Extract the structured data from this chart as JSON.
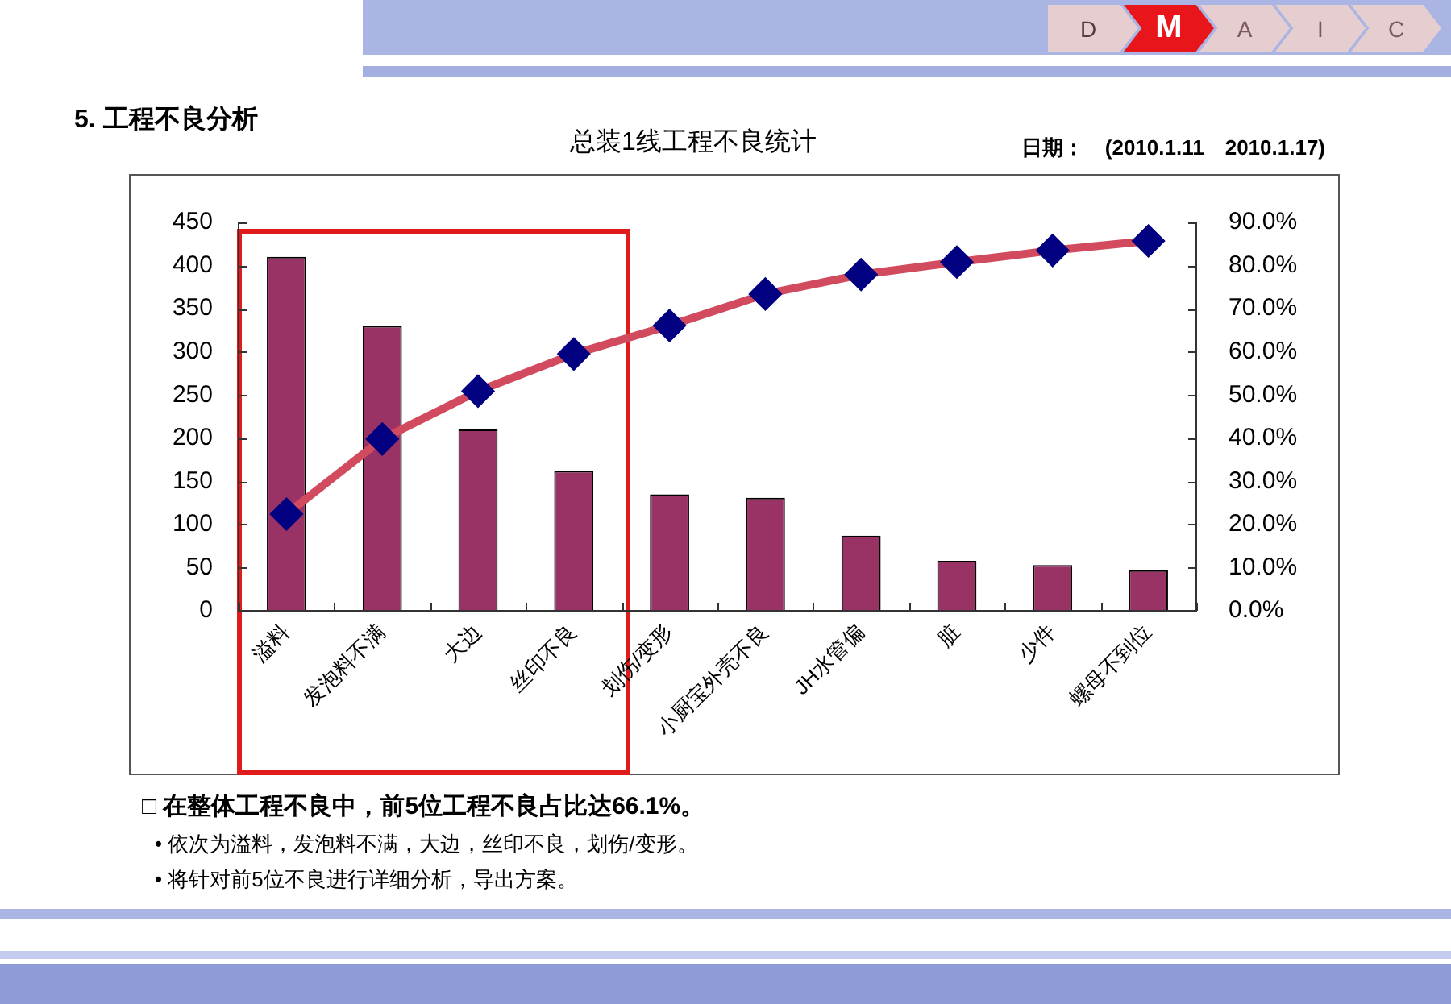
{
  "chart_data": {
    "type": "bar",
    "title": "总装1线工程不良统计",
    "subtitle": "日期：　(2010.1.11　2010.1.17)",
    "categories": [
      "溢料",
      "发泡料不满",
      "大边",
      "丝印不良",
      "划伤/变形",
      "小厨宝外壳不良",
      "JH水管偏",
      "脏",
      "少件",
      "螺母不到位"
    ],
    "series": [
      {
        "color": "#993366",
        "values": [
          410,
          330,
          210,
          162,
          135,
          131,
          87,
          58,
          53,
          47
        ]
      },
      {
        "type": "line",
        "axis": "y2",
        "color": "#d24a5e",
        "colors": [
          "#000080",
          "#000080",
          "#000080",
          "#000080",
          "#000080",
          "#000080",
          "#000080",
          "#000080",
          "#000080",
          "#000080"
        ],
        "marker": "diamond",
        "line_style": "solid",
        "values": [
          22.4,
          39.8,
          50.9,
          59.5,
          66.1,
          73.4,
          77.9,
          80.8,
          83.5,
          85.7
        ]
      }
    ],
    "ylim": [
      0,
      450
    ],
    "yticks": [
      0,
      50,
      100,
      150,
      200,
      250,
      300,
      350,
      400,
      450
    ],
    "y2lim": [
      0,
      90
    ],
    "y2ticks": [
      {
        "value": 0,
        "label": "0.0%"
      },
      {
        "value": 10,
        "label": "10.0%"
      },
      {
        "value": 20,
        "label": "20.0%"
      },
      {
        "value": 30,
        "label": "30.0%"
      },
      {
        "value": 40,
        "label": "40.0%"
      },
      {
        "value": 50,
        "label": "50.0%"
      },
      {
        "value": 60,
        "label": "60.0%"
      },
      {
        "value": 70,
        "label": "70.0%"
      },
      {
        "value": 80,
        "label": "80.0%"
      },
      {
        "value": 90,
        "label": "90.0%"
      }
    ],
    "grid": false,
    "legend": false,
    "annotations": [
      "5. 工程不良分析",
      "□ 在整体工程不良中，前5位工程不良占比达66.1%。",
      "• 依次为溢料，发泡料不满，大边，丝印不良，划伤/变形。",
      "• 将针对前5位不良进行详细分析，导出方案。",
      "D",
      "M",
      "A",
      "I",
      "C"
    ]
  }
}
